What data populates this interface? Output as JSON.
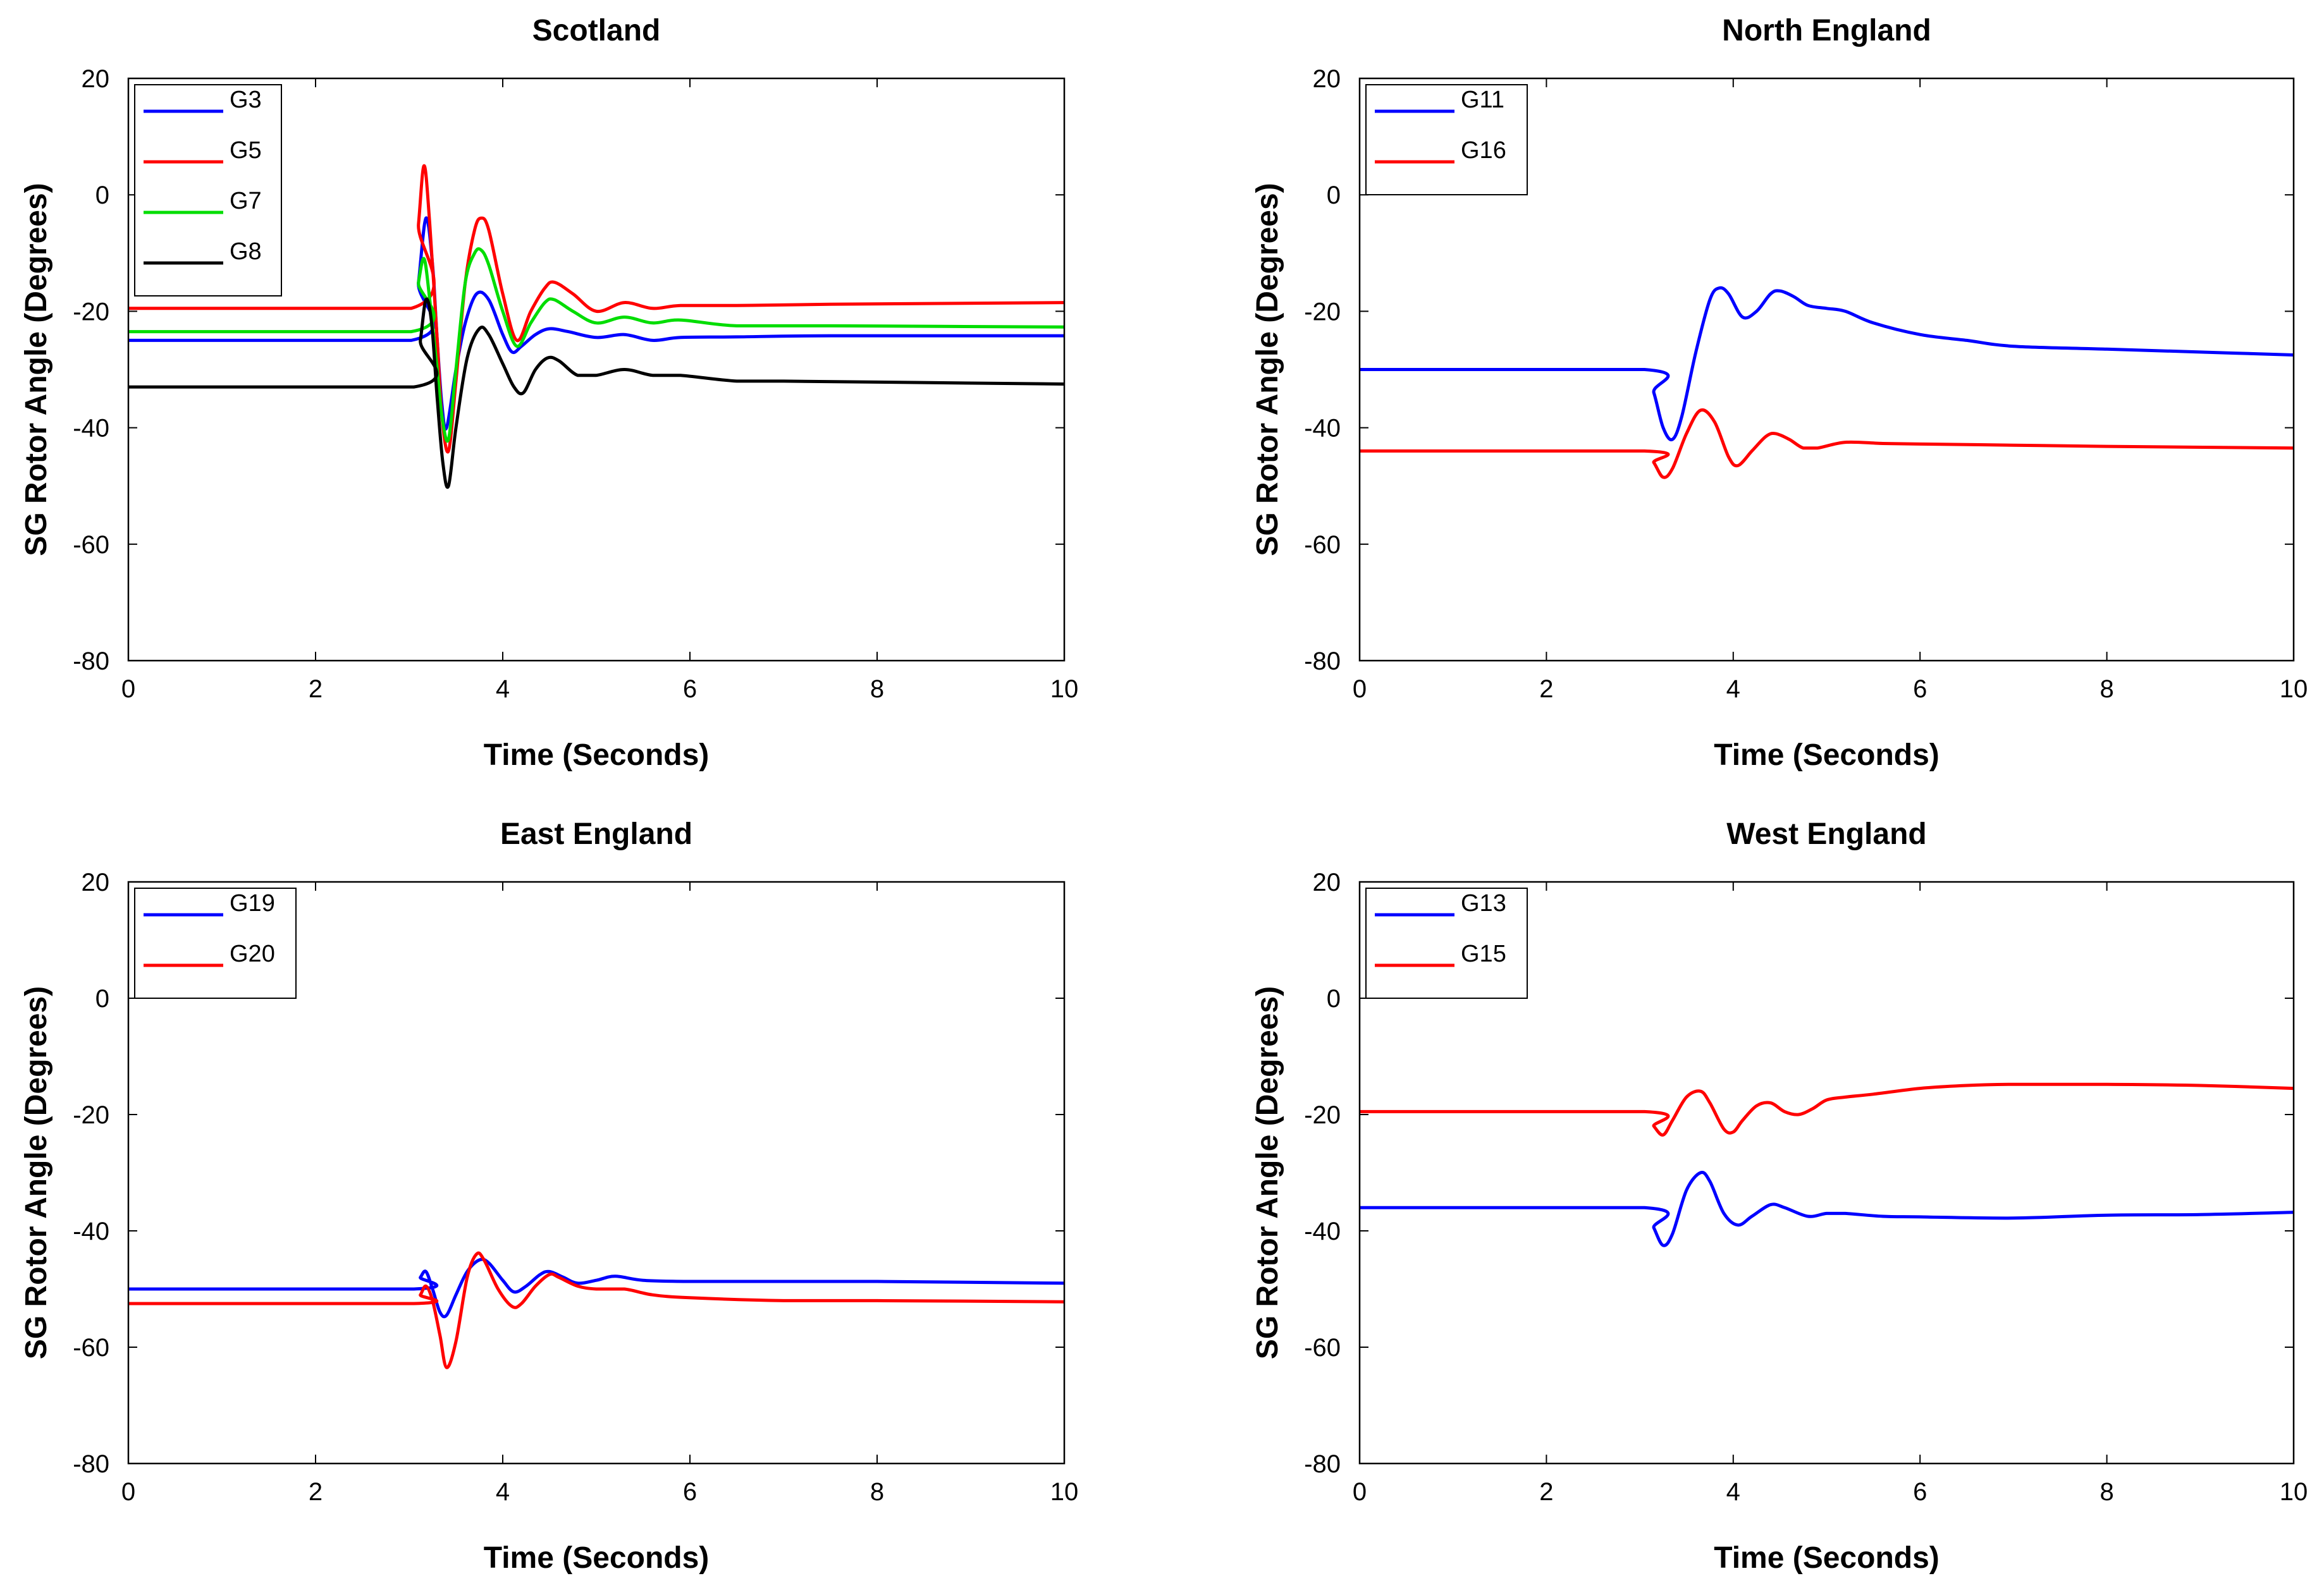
{
  "chart_data": [
    {
      "type": "line",
      "title": "Scotland",
      "xlabel": "Time (Seconds)",
      "ylabel": "SG Rotor Angle (Degrees)",
      "xlim": [
        0,
        10
      ],
      "ylim": [
        -80,
        20
      ],
      "xticks": [
        0,
        2,
        4,
        6,
        8,
        10
      ],
      "yticks": [
        -80,
        -60,
        -40,
        -20,
        0,
        20
      ],
      "legend_position": "top-left",
      "series": [
        {
          "name": "G3",
          "color": "#0000ff",
          "x": [
            0,
            3.02,
            3.1,
            3.18,
            3.25,
            3.3,
            3.35,
            3.4,
            3.5,
            3.6,
            3.72,
            3.85,
            4.0,
            4.1,
            4.2,
            4.35,
            4.5,
            4.7,
            5.0,
            5.3,
            5.6,
            5.9,
            6.5,
            7.5,
            10
          ],
          "y": [
            -25,
            -25,
            -15,
            -4,
            -12,
            -25,
            -36,
            -40,
            -30,
            -22,
            -17,
            -18,
            -24,
            -27,
            -26,
            -24,
            -23,
            -23.5,
            -24.5,
            -24,
            -25,
            -24.5,
            -24.4,
            -24.2,
            -24.2
          ]
        },
        {
          "name": "G5",
          "color": "#ff0000",
          "x": [
            0,
            3.02,
            3.1,
            3.16,
            3.22,
            3.3,
            3.35,
            3.42,
            3.5,
            3.6,
            3.7,
            3.77,
            3.85,
            4.0,
            4.15,
            4.3,
            4.45,
            4.55,
            4.75,
            5.0,
            5.3,
            5.6,
            5.9,
            6.5,
            7.5,
            10
          ],
          "y": [
            -19.5,
            -19.5,
            -5,
            5,
            -5,
            -25,
            -38,
            -44,
            -32,
            -15,
            -6,
            -4,
            -6,
            -17,
            -25,
            -20,
            -16,
            -15,
            -17,
            -20,
            -18.5,
            -19.5,
            -19,
            -19,
            -18.8,
            -18.5
          ]
        },
        {
          "name": "G7",
          "color": "#00dd00",
          "x": [
            0,
            3.02,
            3.1,
            3.16,
            3.22,
            3.3,
            3.35,
            3.42,
            3.5,
            3.6,
            3.7,
            3.77,
            3.85,
            4.0,
            4.15,
            4.3,
            4.45,
            4.55,
            4.75,
            5.0,
            5.3,
            5.6,
            5.9,
            6.5,
            7.5,
            10
          ],
          "y": [
            -23.5,
            -23.5,
            -15,
            -11,
            -18,
            -30,
            -38,
            -42,
            -30,
            -15,
            -10,
            -9.5,
            -12,
            -20,
            -26,
            -22,
            -18.5,
            -18,
            -20,
            -22,
            -21,
            -22,
            -21.5,
            -22.5,
            -22.5,
            -22.7
          ]
        },
        {
          "name": "G8",
          "color": "#000000",
          "x": [
            0,
            3.05,
            3.12,
            3.18,
            3.24,
            3.3,
            3.36,
            3.42,
            3.5,
            3.62,
            3.75,
            3.85,
            4.0,
            4.12,
            4.22,
            4.35,
            4.48,
            4.6,
            4.8,
            5.0,
            5.3,
            5.6,
            5.9,
            6.5,
            7.0,
            10
          ],
          "y": [
            -33,
            -33,
            -25,
            -18,
            -22,
            -35,
            -46,
            -50,
            -40,
            -28,
            -23,
            -24,
            -29,
            -33,
            -34,
            -30,
            -28,
            -28.5,
            -31,
            -31,
            -30,
            -31,
            -31,
            -32,
            -32,
            -32.5
          ]
        }
      ]
    },
    {
      "type": "line",
      "title": "North England",
      "xlabel": "Time (Seconds)",
      "ylabel": "SG Rotor Angle (Degrees)",
      "xlim": [
        0,
        10
      ],
      "ylim": [
        -80,
        20
      ],
      "xticks": [
        0,
        2,
        4,
        6,
        8,
        10
      ],
      "yticks": [
        -80,
        -60,
        -40,
        -20,
        0,
        20
      ],
      "legend_position": "top-left",
      "series": [
        {
          "name": "G11",
          "color": "#0000ff",
          "x": [
            0,
            3.05,
            3.15,
            3.25,
            3.35,
            3.45,
            3.6,
            3.75,
            3.85,
            3.95,
            4.1,
            4.25,
            4.4,
            4.5,
            4.65,
            4.8,
            5.0,
            5.2,
            5.5,
            6.0,
            6.5,
            7.0,
            8.0,
            9.0,
            10
          ],
          "y": [
            -30,
            -30,
            -34,
            -40,
            -42,
            -38,
            -27,
            -18,
            -16,
            -17,
            -21,
            -20,
            -17,
            -16.5,
            -17.5,
            -19,
            -19.5,
            -20,
            -22,
            -24,
            -25,
            -26,
            -26.5,
            -27,
            -27.5
          ]
        },
        {
          "name": "G16",
          "color": "#ff0000",
          "x": [
            0,
            3.05,
            3.15,
            3.25,
            3.35,
            3.5,
            3.65,
            3.8,
            3.95,
            4.05,
            4.2,
            4.35,
            4.45,
            4.6,
            4.75,
            4.9,
            5.2,
            5.6,
            6.0,
            7.0,
            8.0,
            10
          ],
          "y": [
            -44,
            -44,
            -46,
            -48.5,
            -47,
            -41,
            -37,
            -39,
            -45,
            -46.5,
            -44,
            -41.5,
            -41,
            -42,
            -43.5,
            -43.5,
            -42.5,
            -42.7,
            -42.8,
            -43,
            -43.2,
            -43.5
          ]
        }
      ]
    },
    {
      "type": "line",
      "title": "East England",
      "xlabel": "Time (Seconds)",
      "ylabel": "SG Rotor Angle (Degrees)",
      "xlim": [
        0,
        10
      ],
      "ylim": [
        -80,
        20
      ],
      "xticks": [
        0,
        2,
        4,
        6,
        8,
        10
      ],
      "yticks": [
        -80,
        -60,
        -40,
        -20,
        0,
        20
      ],
      "legend_position": "top-left",
      "series": [
        {
          "name": "G19",
          "color": "#0000ff",
          "x": [
            0,
            3.05,
            3.12,
            3.18,
            3.25,
            3.33,
            3.4,
            3.5,
            3.62,
            3.75,
            3.85,
            4.0,
            4.12,
            4.25,
            4.4,
            4.5,
            4.65,
            4.8,
            5.0,
            5.2,
            5.5,
            6.0,
            7.0,
            8.0,
            10
          ],
          "y": [
            -50,
            -50,
            -48,
            -47,
            -50,
            -54,
            -54.5,
            -51,
            -47,
            -45,
            -45.5,
            -48.5,
            -50.5,
            -49.5,
            -47.5,
            -47,
            -48,
            -49,
            -48.5,
            -47.8,
            -48.5,
            -48.7,
            -48.7,
            -48.7,
            -49
          ]
        },
        {
          "name": "G20",
          "color": "#ff0000",
          "x": [
            0,
            3.05,
            3.12,
            3.18,
            3.25,
            3.33,
            3.4,
            3.5,
            3.62,
            3.72,
            3.8,
            3.95,
            4.1,
            4.2,
            4.35,
            4.5,
            4.6,
            4.8,
            5.0,
            5.3,
            5.6,
            6.0,
            7.0,
            8.0,
            10
          ],
          "y": [
            -52.5,
            -52.5,
            -51,
            -49.5,
            -52,
            -58,
            -63.5,
            -59,
            -48,
            -44,
            -45,
            -50,
            -53,
            -52.5,
            -49.5,
            -47.5,
            -48,
            -49.5,
            -50,
            -50,
            -51,
            -51.5,
            -52,
            -52,
            -52.2
          ]
        }
      ]
    },
    {
      "type": "line",
      "title": "West England",
      "xlabel": "Time (Seconds)",
      "ylabel": "SG Rotor Angle (Degrees)",
      "xlim": [
        0,
        10
      ],
      "ylim": [
        -80,
        20
      ],
      "xticks": [
        0,
        2,
        4,
        6,
        8,
        10
      ],
      "yticks": [
        -80,
        -60,
        -40,
        -20,
        0,
        20
      ],
      "legend_position": "top-left",
      "series": [
        {
          "name": "G13",
          "color": "#0000ff",
          "x": [
            0,
            3.05,
            3.15,
            3.25,
            3.35,
            3.5,
            3.65,
            3.75,
            3.9,
            4.05,
            4.2,
            4.4,
            4.55,
            4.8,
            5.0,
            5.2,
            5.6,
            6.0,
            7.0,
            8.0,
            9.0,
            10
          ],
          "y": [
            -36,
            -36,
            -39.5,
            -42.5,
            -40.5,
            -33,
            -30,
            -31.5,
            -37,
            -39,
            -37.5,
            -35.5,
            -36,
            -37.5,
            -37,
            -37,
            -37.5,
            -37.6,
            -37.8,
            -37.3,
            -37.2,
            -36.8
          ]
        },
        {
          "name": "G15",
          "color": "#ff0000",
          "x": [
            0,
            3.05,
            3.15,
            3.25,
            3.35,
            3.5,
            3.65,
            3.75,
            3.9,
            4.0,
            4.1,
            4.25,
            4.4,
            4.55,
            4.7,
            4.85,
            5.0,
            5.2,
            5.5,
            6.0,
            6.5,
            7.0,
            8.0,
            9.0,
            10
          ],
          "y": [
            -19.5,
            -19.5,
            -22,
            -23.5,
            -21,
            -17,
            -16,
            -18,
            -22.5,
            -23,
            -21,
            -18.5,
            -18,
            -19.5,
            -20,
            -19,
            -17.5,
            -17,
            -16.5,
            -15.5,
            -15,
            -14.8,
            -14.8,
            -15,
            -15.5
          ]
        }
      ]
    }
  ]
}
